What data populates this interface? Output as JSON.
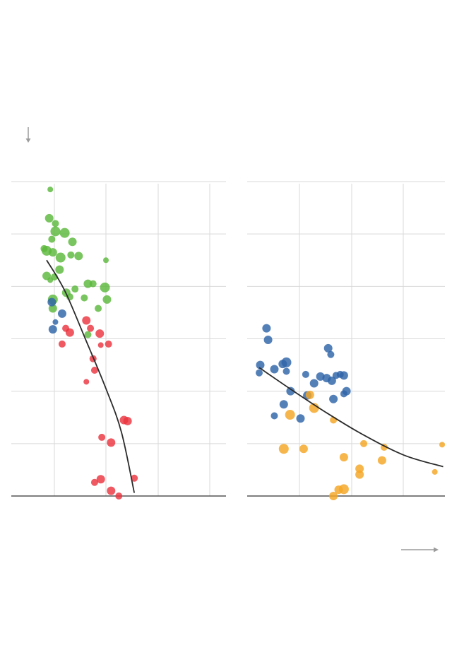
{
  "colors": {
    "background": "#ffffff",
    "grid": "#d9d9d9",
    "baseline": "#333333",
    "trend": "#2b2b2b",
    "arrow": "#9b9b9b",
    "green": "#5cb83c",
    "blue": "#2e64a8",
    "red": "#ea3440",
    "orange": "#f5a623"
  },
  "chart_data": [
    {
      "type": "scatter",
      "title": "",
      "xlabel": "",
      "ylabel": "",
      "grid": true,
      "xlim": [
        0,
        4
      ],
      "ylim": [
        0,
        6
      ],
      "series": [
        {
          "color": "green",
          "points": [
            {
              "x": 0.92,
              "y": 5.85,
              "s": 4
            },
            {
              "x": 0.9,
              "y": 5.3,
              "s": 6
            },
            {
              "x": 1.02,
              "y": 5.2,
              "s": 5
            },
            {
              "x": 1.02,
              "y": 5.05,
              "s": 7
            },
            {
              "x": 1.2,
              "y": 5.02,
              "s": 7
            },
            {
              "x": 0.95,
              "y": 4.9,
              "s": 5
            },
            {
              "x": 1.35,
              "y": 4.85,
              "s": 6
            },
            {
              "x": 0.85,
              "y": 4.68,
              "s": 7
            },
            {
              "x": 0.97,
              "y": 4.65,
              "s": 6
            },
            {
              "x": 1.32,
              "y": 4.6,
              "s": 5
            },
            {
              "x": 1.47,
              "y": 4.58,
              "s": 6
            },
            {
              "x": 1.12,
              "y": 4.55,
              "s": 7
            },
            {
              "x": 0.8,
              "y": 4.72,
              "s": 5
            },
            {
              "x": 2.0,
              "y": 4.5,
              "s": 4
            },
            {
              "x": 1.1,
              "y": 4.32,
              "s": 6
            },
            {
              "x": 0.85,
              "y": 4.2,
              "s": 6
            },
            {
              "x": 1.0,
              "y": 4.18,
              "s": 5
            },
            {
              "x": 0.92,
              "y": 4.12,
              "s": 4
            },
            {
              "x": 1.65,
              "y": 4.05,
              "s": 6
            },
            {
              "x": 1.75,
              "y": 4.05,
              "s": 5
            },
            {
              "x": 1.4,
              "y": 3.95,
              "s": 5
            },
            {
              "x": 1.98,
              "y": 3.98,
              "s": 7
            },
            {
              "x": 1.23,
              "y": 3.88,
              "s": 6
            },
            {
              "x": 1.3,
              "y": 3.8,
              "s": 5
            },
            {
              "x": 1.58,
              "y": 3.78,
              "s": 5
            },
            {
              "x": 2.02,
              "y": 3.75,
              "s": 6
            },
            {
              "x": 0.97,
              "y": 3.75,
              "s": 7
            },
            {
              "x": 0.97,
              "y": 3.58,
              "s": 6
            },
            {
              "x": 1.85,
              "y": 3.58,
              "s": 5
            },
            {
              "x": 1.65,
              "y": 3.08,
              "s": 5
            }
          ]
        },
        {
          "color": "blue",
          "points": [
            {
              "x": 0.95,
              "y": 3.7,
              "s": 6
            },
            {
              "x": 1.15,
              "y": 3.48,
              "s": 6
            },
            {
              "x": 1.02,
              "y": 3.32,
              "s": 4
            },
            {
              "x": 0.97,
              "y": 3.18,
              "s": 6
            }
          ]
        },
        {
          "color": "red",
          "points": [
            {
              "x": 1.62,
              "y": 3.35,
              "s": 6
            },
            {
              "x": 1.22,
              "y": 3.2,
              "s": 5
            },
            {
              "x": 1.7,
              "y": 3.2,
              "s": 5
            },
            {
              "x": 1.3,
              "y": 3.12,
              "s": 6
            },
            {
              "x": 1.88,
              "y": 3.1,
              "s": 6
            },
            {
              "x": 1.15,
              "y": 2.9,
              "s": 5
            },
            {
              "x": 2.05,
              "y": 2.9,
              "s": 5
            },
            {
              "x": 1.9,
              "y": 2.88,
              "s": 4
            },
            {
              "x": 1.75,
              "y": 2.62,
              "s": 5
            },
            {
              "x": 1.78,
              "y": 2.4,
              "s": 5
            },
            {
              "x": 1.62,
              "y": 2.18,
              "s": 4
            },
            {
              "x": 2.35,
              "y": 1.45,
              "s": 6
            },
            {
              "x": 2.42,
              "y": 1.43,
              "s": 6
            },
            {
              "x": 1.92,
              "y": 1.12,
              "s": 5
            },
            {
              "x": 2.1,
              "y": 1.02,
              "s": 6
            },
            {
              "x": 1.9,
              "y": 0.32,
              "s": 6
            },
            {
              "x": 1.78,
              "y": 0.26,
              "s": 5
            },
            {
              "x": 2.55,
              "y": 0.34,
              "s": 5
            },
            {
              "x": 2.1,
              "y": 0.1,
              "s": 6
            },
            {
              "x": 2.25,
              "y": 0.0,
              "s": 5
            }
          ]
        }
      ],
      "trend": [
        [
          0.85,
          4.5
        ],
        [
          1.2,
          3.92
        ],
        [
          1.6,
          3.0
        ],
        [
          2.0,
          2.05
        ],
        [
          2.3,
          1.22
        ],
        [
          2.55,
          0.06
        ]
      ]
    },
    {
      "type": "scatter",
      "title": "",
      "xlabel": "",
      "ylabel": "",
      "grid": true,
      "xlim": [
        0,
        3.8
      ],
      "ylim": [
        0,
        6
      ],
      "series": [
        {
          "color": "blue",
          "points": [
            {
              "x": 0.37,
              "y": 3.2,
              "s": 6
            },
            {
              "x": 0.4,
              "y": 2.98,
              "s": 6
            },
            {
              "x": 1.55,
              "y": 2.82,
              "s": 6
            },
            {
              "x": 1.6,
              "y": 2.7,
              "s": 5
            },
            {
              "x": 0.25,
              "y": 2.5,
              "s": 6
            },
            {
              "x": 0.68,
              "y": 2.52,
              "s": 6
            },
            {
              "x": 0.75,
              "y": 2.55,
              "s": 7
            },
            {
              "x": 0.52,
              "y": 2.42,
              "s": 6
            },
            {
              "x": 0.75,
              "y": 2.38,
              "s": 5
            },
            {
              "x": 0.23,
              "y": 2.35,
              "s": 5
            },
            {
              "x": 1.12,
              "y": 2.32,
              "s": 5
            },
            {
              "x": 1.4,
              "y": 2.28,
              "s": 6
            },
            {
              "x": 1.52,
              "y": 2.25,
              "s": 6
            },
            {
              "x": 1.7,
              "y": 2.3,
              "s": 5
            },
            {
              "x": 1.78,
              "y": 2.32,
              "s": 5
            },
            {
              "x": 1.62,
              "y": 2.2,
              "s": 6
            },
            {
              "x": 1.85,
              "y": 2.3,
              "s": 6
            },
            {
              "x": 1.28,
              "y": 2.15,
              "s": 6
            },
            {
              "x": 0.83,
              "y": 2.0,
              "s": 6
            },
            {
              "x": 1.9,
              "y": 2.0,
              "s": 6
            },
            {
              "x": 1.85,
              "y": 1.95,
              "s": 5
            },
            {
              "x": 1.15,
              "y": 1.92,
              "s": 6
            },
            {
              "x": 1.65,
              "y": 1.85,
              "s": 6
            },
            {
              "x": 0.7,
              "y": 1.75,
              "s": 6
            },
            {
              "x": 0.52,
              "y": 1.53,
              "s": 5
            },
            {
              "x": 1.02,
              "y": 1.48,
              "s": 6
            }
          ]
        },
        {
          "color": "orange",
          "points": [
            {
              "x": 1.2,
              "y": 1.93,
              "s": 6
            },
            {
              "x": 1.28,
              "y": 1.68,
              "s": 7
            },
            {
              "x": 0.82,
              "y": 1.55,
              "s": 7
            },
            {
              "x": 1.65,
              "y": 1.45,
              "s": 5
            },
            {
              "x": 2.23,
              "y": 1.0,
              "s": 5
            },
            {
              "x": 2.62,
              "y": 0.93,
              "s": 5
            },
            {
              "x": 3.73,
              "y": 0.98,
              "s": 4
            },
            {
              "x": 0.7,
              "y": 0.9,
              "s": 7
            },
            {
              "x": 1.08,
              "y": 0.9,
              "s": 6
            },
            {
              "x": 1.85,
              "y": 0.74,
              "s": 6
            },
            {
              "x": 2.58,
              "y": 0.68,
              "s": 6
            },
            {
              "x": 2.15,
              "y": 0.52,
              "s": 6
            },
            {
              "x": 2.15,
              "y": 0.41,
              "s": 6
            },
            {
              "x": 3.59,
              "y": 0.46,
              "s": 4
            },
            {
              "x": 1.75,
              "y": 0.12,
              "s": 6
            },
            {
              "x": 1.85,
              "y": 0.13,
              "s": 7
            },
            {
              "x": 1.65,
              "y": 0.0,
              "s": 6
            }
          ]
        }
      ],
      "trend": [
        [
          0.23,
          2.45
        ],
        [
          0.8,
          2.06
        ],
        [
          1.5,
          1.6
        ],
        [
          2.2,
          1.18
        ],
        [
          3.0,
          0.78
        ],
        [
          3.75,
          0.56
        ]
      ]
    }
  ]
}
